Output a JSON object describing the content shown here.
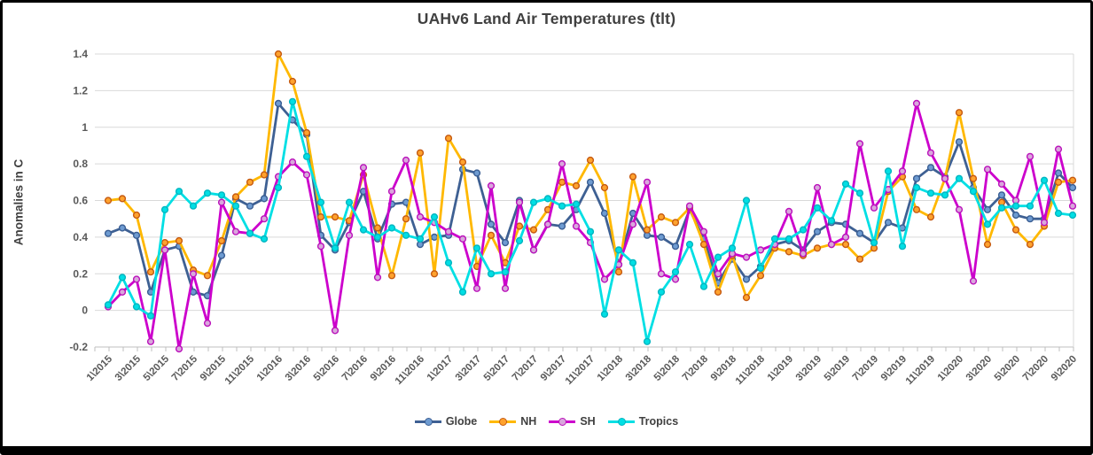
{
  "chart_data": {
    "type": "line",
    "title": "UAHv6 Land Air Temperatures (tlt)",
    "ylabel": "Anomalies in C",
    "xlabel": "",
    "ylim": [
      -0.2,
      1.4
    ],
    "ytick_labels": [
      "-0.2",
      "0",
      "0.2",
      "0.4",
      "0.6",
      "0.8",
      "1",
      "1.2",
      "1.4"
    ],
    "ytick_values": [
      -0.2,
      0,
      0.2,
      0.4,
      0.6,
      0.8,
      1.0,
      1.2,
      1.4
    ],
    "grid": "horizontal",
    "grid_color": "#D9D9D9",
    "axis_color": "#BFBFBF",
    "tick_label_color": "#595959",
    "title_color": "#404040",
    "border_color": "#000000",
    "legend_position": "bottom",
    "n_points": 69,
    "x_start": "1\\2015",
    "x_end": "9\\2020",
    "xtick_labels": [
      "1\\2015",
      "3\\2015",
      "5\\2015",
      "7\\2015",
      "9\\2015",
      "11\\2015",
      "1\\2016",
      "3\\2016",
      "5\\2016",
      "7\\2016",
      "9\\2016",
      "11\\2016",
      "1\\2017",
      "3\\2017",
      "5\\2017",
      "7\\2017",
      "9\\2017",
      "11\\2017",
      "1\\2018",
      "3\\2018",
      "5\\2018",
      "7\\2018",
      "9\\2018",
      "11\\2018",
      "1\\2019",
      "3\\2019",
      "5\\2019",
      "7\\2019",
      "9\\2019",
      "11\\2019",
      "1\\2020",
      "3\\2020",
      "5\\2020",
      "7\\2020",
      "9\\2020"
    ],
    "series": [
      {
        "name": "Globe",
        "color": "#3E6093",
        "marker_fill": "#6E9BD1",
        "marker_stroke": "#3A5E93",
        "values": [
          0.42,
          0.45,
          0.41,
          0.1,
          0.33,
          0.35,
          0.1,
          0.08,
          0.3,
          0.61,
          0.57,
          0.61,
          1.13,
          1.04,
          0.96,
          0.41,
          0.33,
          0.48,
          0.65,
          0.39,
          0.58,
          0.59,
          0.36,
          0.4,
          0.41,
          0.77,
          0.75,
          0.47,
          0.37,
          0.6,
          0.33,
          0.47,
          0.46,
          0.55,
          0.7,
          0.53,
          0.25,
          0.53,
          0.41,
          0.4,
          0.35,
          0.55,
          0.39,
          0.15,
          0.28,
          0.17,
          0.24,
          0.36,
          0.38,
          0.33,
          0.43,
          0.48,
          0.47,
          0.42,
          0.37,
          0.48,
          0.45,
          0.72,
          0.78,
          0.73,
          0.92,
          0.67,
          0.55,
          0.63,
          0.52,
          0.5,
          0.5,
          0.75,
          0.67
        ]
      },
      {
        "name": "NH",
        "color": "#FFB800",
        "marker_fill": "#FFA22E",
        "marker_stroke": "#C55A11",
        "values": [
          0.6,
          0.61,
          0.52,
          0.21,
          0.37,
          0.38,
          0.22,
          0.19,
          0.38,
          0.62,
          0.7,
          0.74,
          1.4,
          1.25,
          0.97,
          0.51,
          0.51,
          0.49,
          0.74,
          0.45,
          0.19,
          0.5,
          0.86,
          0.2,
          0.94,
          0.81,
          0.24,
          0.41,
          0.26,
          0.46,
          0.44,
          0.55,
          0.7,
          0.68,
          0.82,
          0.67,
          0.21,
          0.73,
          0.44,
          0.51,
          0.48,
          0.56,
          0.36,
          0.1,
          0.3,
          0.07,
          0.19,
          0.34,
          0.32,
          0.3,
          0.34,
          0.36,
          0.36,
          0.28,
          0.34,
          0.65,
          0.73,
          0.55,
          0.51,
          0.72,
          1.08,
          0.72,
          0.36,
          0.59,
          0.44,
          0.36,
          0.46,
          0.7,
          0.71
        ]
      },
      {
        "name": "SH",
        "color": "#CC00CC",
        "marker_fill": "#D9A7DC",
        "marker_stroke": "#BB12BB",
        "values": [
          0.02,
          0.1,
          0.17,
          -0.17,
          0.33,
          -0.21,
          0.2,
          -0.07,
          0.59,
          0.43,
          0.42,
          0.5,
          0.73,
          0.81,
          0.74,
          0.35,
          -0.11,
          0.41,
          0.78,
          0.18,
          0.65,
          0.82,
          0.51,
          0.48,
          0.43,
          0.39,
          0.12,
          0.68,
          0.12,
          0.59,
          0.33,
          0.47,
          0.8,
          0.46,
          0.37,
          0.17,
          0.25,
          0.47,
          0.7,
          0.2,
          0.17,
          0.57,
          0.43,
          0.2,
          0.31,
          0.29,
          0.33,
          0.36,
          0.54,
          0.31,
          0.67,
          0.36,
          0.4,
          0.91,
          0.56,
          0.66,
          0.76,
          1.13,
          0.86,
          0.72,
          0.55,
          0.16,
          0.77,
          0.69,
          0.6,
          0.84,
          0.48,
          0.88,
          0.57
        ]
      },
      {
        "name": "Tropics",
        "color": "#00DFE4",
        "marker_fill": "#00DFE4",
        "marker_stroke": "#00B5C0",
        "values": [
          0.03,
          0.18,
          0.02,
          -0.03,
          0.55,
          0.65,
          0.57,
          0.64,
          0.63,
          0.57,
          0.42,
          0.39,
          0.67,
          1.14,
          0.84,
          0.59,
          0.34,
          0.59,
          0.44,
          0.4,
          0.45,
          0.41,
          0.39,
          0.51,
          0.26,
          0.1,
          0.34,
          0.2,
          0.21,
          0.38,
          0.59,
          0.61,
          0.57,
          0.58,
          0.43,
          -0.02,
          0.33,
          0.26,
          -0.17,
          0.1,
          0.21,
          0.36,
          0.13,
          0.29,
          0.34,
          0.6,
          0.23,
          0.39,
          0.39,
          0.44,
          0.56,
          0.49,
          0.69,
          0.64,
          0.37,
          0.76,
          0.35,
          0.67,
          0.64,
          0.63,
          0.72,
          0.65,
          0.47,
          0.56,
          0.57,
          0.57,
          0.71,
          0.53,
          0.52
        ]
      }
    ]
  }
}
